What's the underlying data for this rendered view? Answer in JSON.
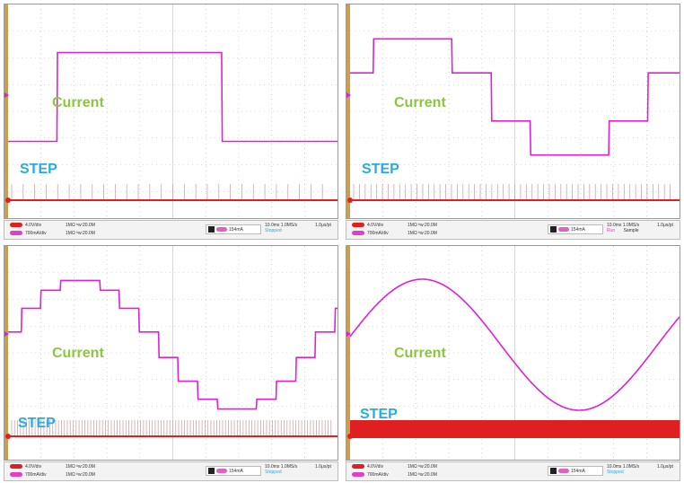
{
  "colors": {
    "current_trace": "#e020d8",
    "step_trace": "#e02020",
    "label_current": "#8cc63e",
    "label_step": "#29abe2",
    "grid": "#b8b8b8",
    "frame_gold": "#c8a050"
  },
  "panels": [
    {
      "label_current": "Current",
      "label_step": "STEP",
      "ch1": "4.0V/div",
      "ch2": "700mA/div",
      "ch1_coupling": "1MΩ ᵇw:20.0M",
      "ch2_coupling": "1MΩ ᵇw:20.0M",
      "trigger": "154mA",
      "time": "10.0ms 1.0MS/s",
      "sample": "1.0μs/pt",
      "status": "Stopped",
      "mode": "",
      "steps": 4
    },
    {
      "label_current": "Current",
      "label_step": "STEP",
      "ch1": "4.0V/div",
      "ch2": "700mA/div",
      "ch1_coupling": "1MΩ ᵇw:20.0M",
      "ch2_coupling": "1MΩ ᵇw:20.0M",
      "trigger": "154mA",
      "time": "10.0ms 1.0MS/s",
      "sample": "1.0μs/pt",
      "status": "Run",
      "mode": "Sample",
      "steps": 8
    },
    {
      "label_current": "Current",
      "label_step": "STEP",
      "ch1": "4.0V/div",
      "ch2": "700mA/div",
      "ch1_coupling": "1MΩ ᵇw:20.0M",
      "ch2_coupling": "1MΩ ᵇw:20.0M",
      "trigger": "154mA",
      "time": "10.0ms 1.0MS/s",
      "sample": "1.0μs/pt",
      "status": "Stopped",
      "mode": "",
      "steps": 16
    },
    {
      "label_current": "Current",
      "label_step": "STEP",
      "ch1": "4.0V/div",
      "ch2": "700mA/div",
      "ch1_coupling": "1MΩ ᵇw:20.0M",
      "ch2_coupling": "1MΩ ᵇw:20.0M",
      "trigger": "154mA",
      "time": "10.0ms 1.0MS/s",
      "sample": "1.0μs/pt",
      "status": "Stopped",
      "mode": "",
      "steps": 64
    }
  ]
}
